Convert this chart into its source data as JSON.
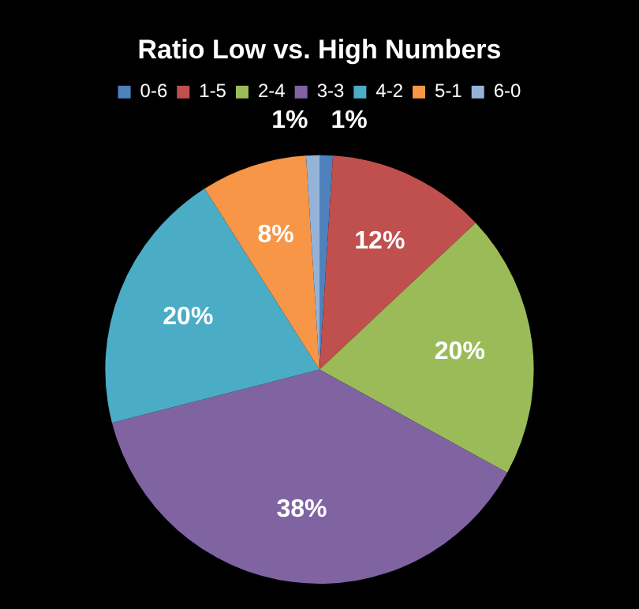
{
  "chart_data": {
    "type": "pie",
    "title": "Ratio Low vs. High Numbers",
    "categories": [
      "0-6",
      "1-5",
      "2-4",
      "3-3",
      "4-2",
      "5-1",
      "6-0"
    ],
    "values": [
      1,
      12,
      20,
      38,
      20,
      8,
      1
    ],
    "value_labels": [
      "1%",
      "12%",
      "20%",
      "38%",
      "20%",
      "8%",
      "1%"
    ],
    "colors": [
      "#4f81bd",
      "#c0504d",
      "#9bbb59",
      "#8064a2",
      "#4bacc6",
      "#f79646",
      "#95b3d7"
    ],
    "legend": "top"
  }
}
